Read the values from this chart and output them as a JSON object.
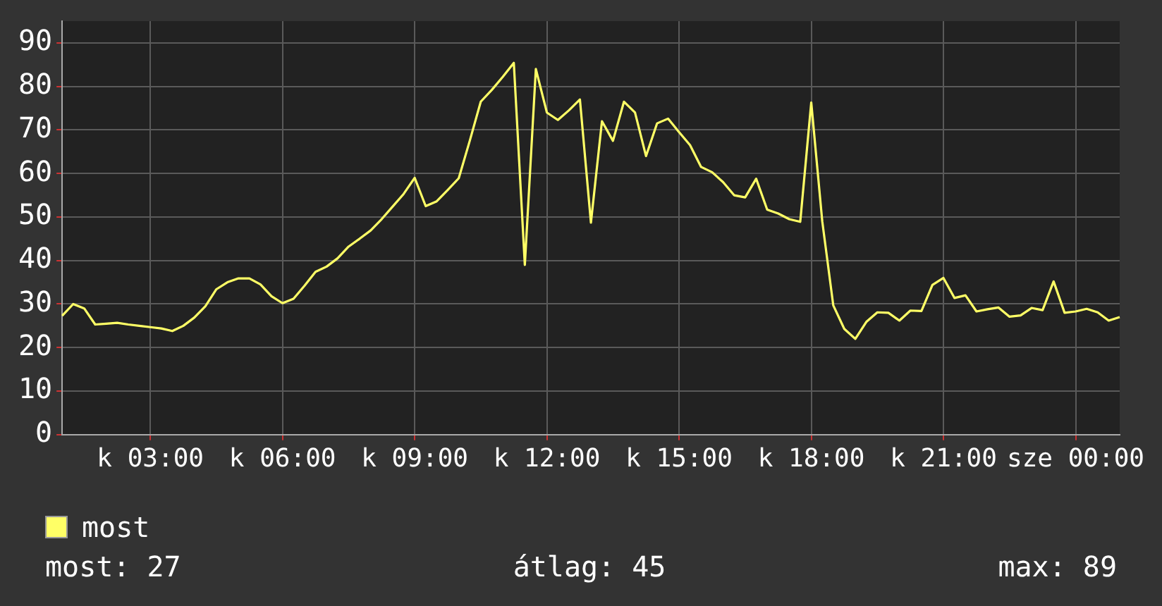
{
  "chart_data": {
    "type": "line",
    "legend": "bottom left",
    "grid": true,
    "marker": "none",
    "line_style": "solid",
    "ylim": [
      0,
      95
    ],
    "yticks": [
      0,
      10,
      20,
      30,
      40,
      50,
      60,
      70,
      80,
      90
    ],
    "categories": [
      null,
      null,
      null,
      null,
      null,
      null,
      null,
      null,
      "k 03:00",
      null,
      null,
      null,
      null,
      null,
      null,
      null,
      null,
      null,
      null,
      null,
      "k 06:00",
      null,
      null,
      null,
      null,
      null,
      null,
      null,
      null,
      null,
      null,
      null,
      "k 09:00",
      null,
      null,
      null,
      null,
      null,
      null,
      null,
      null,
      null,
      null,
      null,
      "k 12:00",
      null,
      null,
      null,
      null,
      null,
      null,
      null,
      null,
      null,
      null,
      null,
      "k 15:00",
      null,
      null,
      null,
      null,
      null,
      null,
      null,
      null,
      null,
      null,
      null,
      "k 18:00",
      null,
      null,
      null,
      null,
      null,
      null,
      null,
      null,
      null,
      null,
      null,
      "k 21:00",
      null,
      null,
      null,
      null,
      null,
      null,
      null,
      null,
      null,
      null,
      null,
      "sze 00:00",
      null,
      null,
      null,
      null
    ],
    "annotations": [
      "most: 27",
      "átlag: 45",
      "max: 89"
    ],
    "series": [
      {
        "name": "most",
        "color": "#ffff66",
        "values": [
          27.3,
          30,
          29,
          25.3,
          25.5,
          25.7,
          25.3,
          25,
          24.7,
          24.4,
          23.8,
          25,
          26.9,
          29.5,
          33.4,
          35,
          35.9,
          35.9,
          34.5,
          31.8,
          30.2,
          31.2,
          34.2,
          37.4,
          38.6,
          40.5,
          43.2,
          45,
          46.9,
          49.5,
          52.4,
          55.3,
          59,
          52.5,
          53.6,
          56.2,
          58.9,
          67.5,
          76.5,
          79.2,
          82.2,
          85.4,
          39,
          84,
          74,
          72.3,
          74.5,
          77,
          48.7,
          72,
          67.5,
          76.5,
          74,
          64,
          71.5,
          72.6,
          69.5,
          66.5,
          61.5,
          60.3,
          58,
          55,
          54.5,
          58.8,
          51.7,
          50.8,
          49.5,
          48.9,
          76.3,
          49,
          29.7,
          24.3,
          22,
          25.9,
          28.1,
          28,
          26.2,
          28.5,
          28.4,
          34.4,
          36,
          31.4,
          32,
          28.3,
          28.8,
          29.2,
          27.1,
          27.4,
          29.1,
          28.6,
          35.2,
          28,
          28.3,
          28.9,
          28.1,
          26.2,
          27
        ]
      }
    ]
  }
}
